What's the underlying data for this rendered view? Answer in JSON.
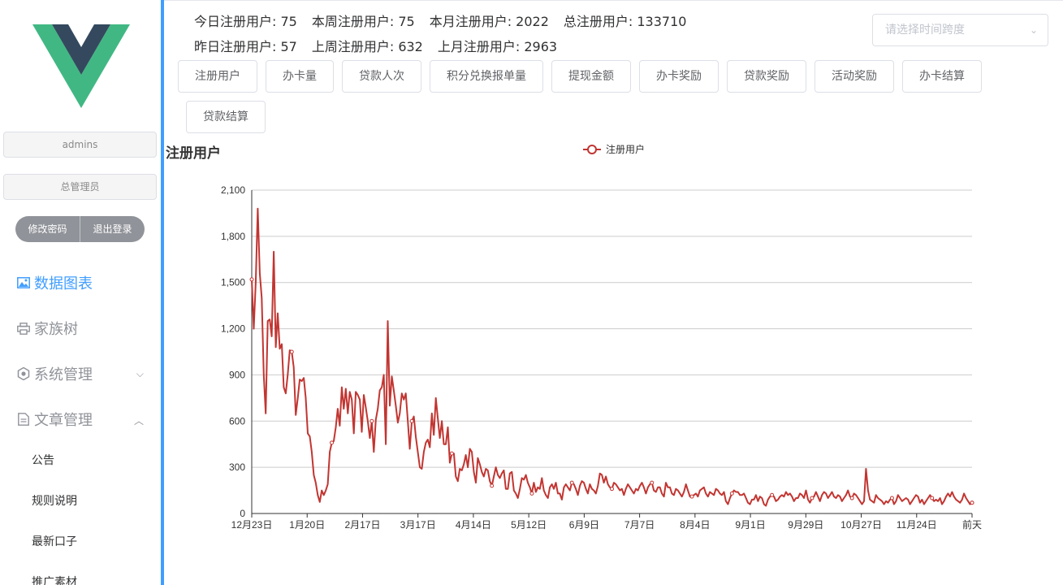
{
  "sidebar": {
    "user_name": "admins",
    "user_role": "总管理员",
    "change_password": "修改密码",
    "logout": "退出登录",
    "menu": [
      {
        "label": "数据图表",
        "icon": "picture-icon",
        "active": true
      },
      {
        "label": "家族树",
        "icon": "printer-icon",
        "active": false
      },
      {
        "label": "系统管理",
        "icon": "gear-icon",
        "active": false,
        "arrow": "⌵"
      },
      {
        "label": "文章管理",
        "icon": "document-icon",
        "active": false,
        "arrow": "︿"
      }
    ],
    "sub_items": [
      "公告",
      "规则说明",
      "最新口子",
      "推广素材"
    ]
  },
  "stats": {
    "row1": [
      "今日注册用户: 75",
      "本周注册用户: 75",
      "本月注册用户: 2022",
      "总注册用户: 133710"
    ],
    "row2": [
      "昨日注册用户: 57",
      "上周注册用户: 632",
      "上月注册用户: 2963"
    ]
  },
  "range_select": {
    "placeholder": "请选择时间跨度"
  },
  "tabs": [
    "注册用户",
    "办卡量",
    "贷款人次",
    "积分兑换报单量",
    "提现金额",
    "办卡奖励",
    "贷款奖励",
    "活动奖励",
    "办卡结算",
    "贷款结算"
  ],
  "chart_data": {
    "type": "line",
    "title": "注册用户",
    "legend": "注册用户",
    "legend_position": "top-center",
    "grid": true,
    "ylim": [
      0,
      2100
    ],
    "yticks": [
      "0",
      "300",
      "600",
      "900",
      "1,200",
      "1,500",
      "1,800",
      "2,100"
    ],
    "xticks": [
      "12月23日",
      "1月20日",
      "2月17日",
      "3月17日",
      "4月14日",
      "5月12日",
      "6月9日",
      "7月7日",
      "8月4日",
      "9月1日",
      "9月29日",
      "10月27日",
      "11月24日",
      "前天"
    ],
    "color": "#c23531",
    "values": [
      1520,
      1200,
      1500,
      1980,
      1560,
      1400,
      900,
      650,
      1250,
      1260,
      1150,
      1700,
      1080,
      1300,
      1070,
      1100,
      820,
      780,
      900,
      1060,
      1050,
      950,
      640,
      750,
      870,
      860,
      880,
      750,
      520,
      500,
      400,
      250,
      200,
      120,
      75,
      150,
      120,
      150,
      190,
      400,
      460,
      470,
      560,
      680,
      570,
      820,
      680,
      810,
      650,
      790,
      740,
      520,
      790,
      770,
      740,
      530,
      770,
      690,
      600,
      490,
      600,
      400,
      610,
      680,
      800,
      820,
      900,
      450,
      1250,
      700,
      890,
      800,
      700,
      590,
      650,
      780,
      740,
      780,
      600,
      420,
      600,
      630,
      500,
      400,
      300,
      290,
      400,
      460,
      480,
      430,
      650,
      510,
      750,
      620,
      490,
      600,
      450,
      450,
      560,
      330,
      390,
      390,
      240,
      210,
      290,
      280,
      320,
      380,
      300,
      420,
      400,
      270,
      200,
      360,
      320,
      270,
      240,
      290,
      280,
      210,
      180,
      240,
      300,
      250,
      230,
      260,
      280,
      160,
      160,
      260,
      270,
      150,
      130,
      100,
      160,
      230,
      220,
      250,
      200,
      170,
      130,
      200,
      140,
      170,
      160,
      230,
      150,
      120,
      100,
      170,
      190,
      160,
      200,
      130,
      130,
      90,
      170,
      190,
      170,
      150,
      200,
      190,
      160,
      120,
      180,
      210,
      200,
      160,
      130,
      190,
      160,
      150,
      130,
      180,
      260,
      250,
      200,
      240,
      190,
      170,
      160,
      200,
      190,
      170,
      150,
      160,
      120,
      160,
      190,
      170,
      150,
      130,
      160,
      150,
      180,
      200,
      170,
      130,
      170,
      190,
      200,
      150,
      140,
      170,
      170,
      130,
      110,
      200,
      170,
      170,
      130,
      120,
      160,
      150,
      130,
      110,
      140,
      190,
      150,
      110,
      110,
      120,
      130,
      110,
      150,
      160,
      170,
      130,
      110,
      140,
      130,
      120,
      160,
      150,
      130,
      120,
      140,
      80,
      60,
      100,
      130,
      150,
      140,
      140,
      120,
      120,
      130,
      100,
      70,
      60,
      90,
      90,
      120,
      80,
      110,
      100,
      60,
      50,
      90,
      110,
      120,
      110,
      80,
      90,
      110,
      120,
      110,
      140,
      120,
      130,
      110,
      80,
      100,
      100,
      130,
      120,
      100,
      150,
      90,
      70,
      100,
      110,
      140,
      110,
      80,
      120,
      140,
      130,
      100,
      120,
      140,
      110,
      100,
      120,
      110,
      80,
      100,
      120,
      150,
      110,
      100,
      130,
      120,
      100,
      80,
      60,
      80,
      290,
      150,
      90,
      80,
      70,
      120,
      100,
      90,
      80,
      60,
      80,
      70,
      90,
      100,
      60,
      80,
      120,
      100,
      80,
      90,
      100,
      90,
      60,
      80,
      100,
      120,
      110,
      70,
      90,
      60,
      80,
      100,
      120,
      100,
      80,
      90,
      80,
      100,
      60,
      80,
      110,
      130,
      110,
      140,
      110,
      90,
      80,
      70,
      90,
      130,
      100,
      80,
      60,
      70
    ]
  }
}
